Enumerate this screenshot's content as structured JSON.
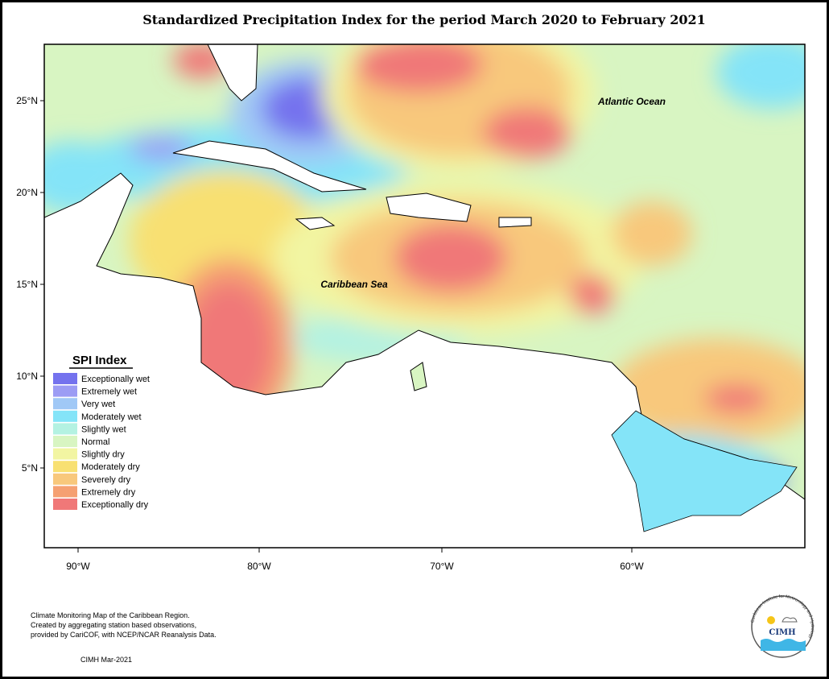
{
  "header": {
    "title": "Standardized Precipitation Index for the period March 2020 to February 2021"
  },
  "map": {
    "lat_ticks": [
      "25°N",
      "20°N",
      "15°N",
      "10°N",
      "5°N"
    ],
    "lon_ticks": [
      "90°W",
      "80°W",
      "70°W",
      "60°W"
    ],
    "labels": [
      "Atlantic Ocean",
      "Caribbean Sea"
    ]
  },
  "legend": {
    "title": "SPI Index",
    "items": [
      {
        "label": "Exceptionally wet",
        "color": "#7472ee"
      },
      {
        "label": "Extremely wet",
        "color": "#9c9cf4"
      },
      {
        "label": "Very wet",
        "color": "#a0c8f6"
      },
      {
        "label": "Moderately wet",
        "color": "#84e4f8"
      },
      {
        "label": "Slightly wet",
        "color": "#b4f2e2"
      },
      {
        "label": "Normal",
        "color": "#d8f5c2"
      },
      {
        "label": "Slightly dry",
        "color": "#f2f5a2"
      },
      {
        "label": "Moderately dry",
        "color": "#f8e072"
      },
      {
        "label": "Severely dry",
        "color": "#f8c87c"
      },
      {
        "label": "Extremely dry",
        "color": "#f5a072"
      },
      {
        "label": "Exceptionally dry",
        "color": "#f07878"
      }
    ]
  },
  "footer": {
    "notes": [
      "Climate Monitoring Map of the Caribbean Region.",
      "Created by aggregating station based observations,",
      "provided by CariCOF, with NCEP/NCAR Reanalysis Data."
    ],
    "credit": "CIMH Mar-2021"
  },
  "logo": {
    "name": "CIMH",
    "ring": "Caribbean Institute for Meteorology and Hydrology"
  }
}
